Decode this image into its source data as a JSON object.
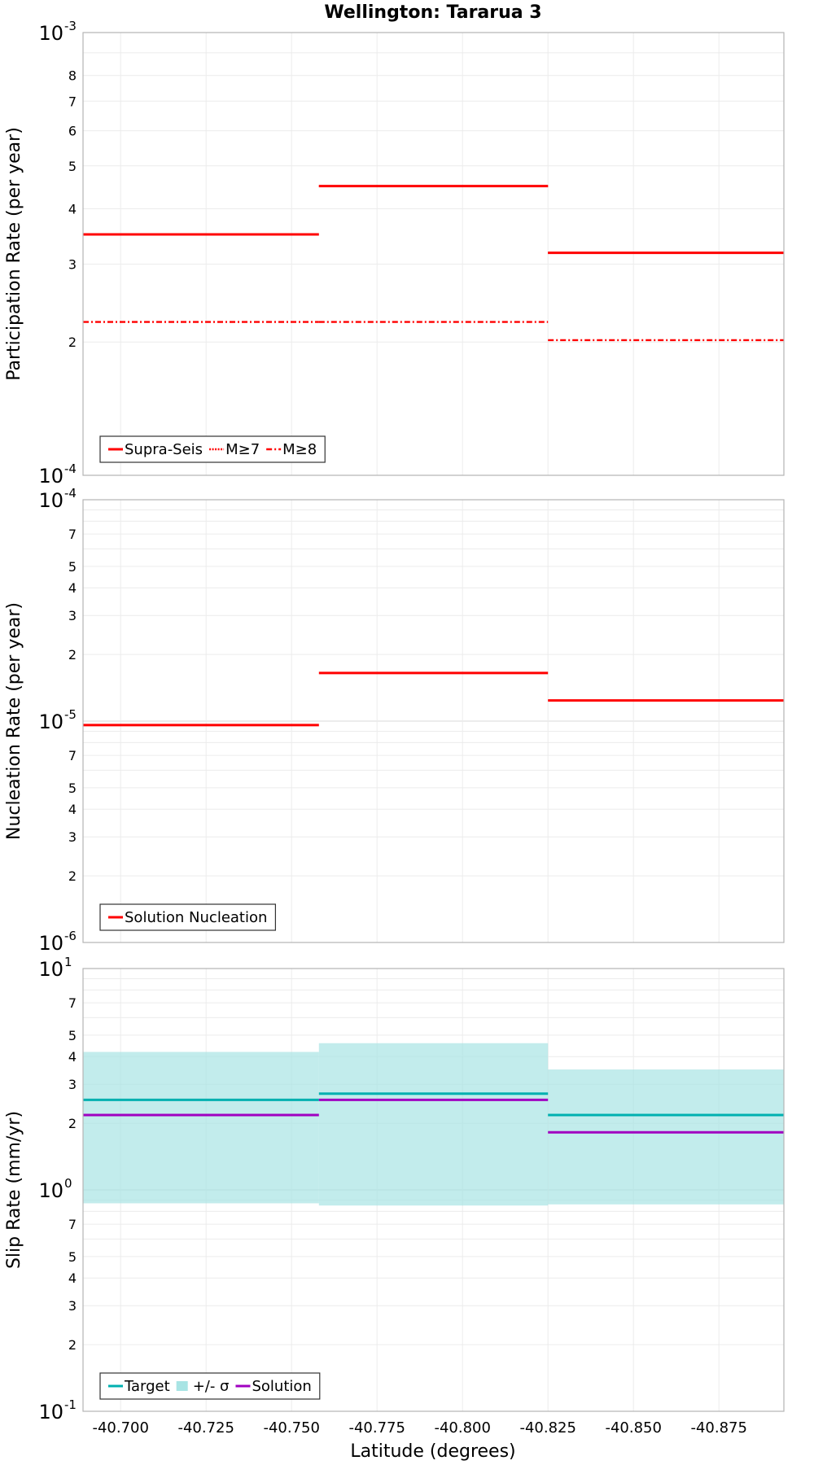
{
  "chart_data": {
    "type": "line",
    "title": "Wellington: Tararua 3",
    "xlabel": "Latitude (degrees)",
    "xlim": [
      -40.689,
      -40.894
    ],
    "x_ticks": [
      {
        "value": -40.7,
        "label": "-40.700"
      },
      {
        "value": -40.725,
        "label": "-40.725"
      },
      {
        "value": -40.75,
        "label": "-40.750"
      },
      {
        "value": -40.775,
        "label": "-40.775"
      },
      {
        "value": -40.8,
        "label": "-40.800"
      },
      {
        "value": -40.825,
        "label": "-40.825"
      },
      {
        "value": -40.85,
        "label": "-40.850"
      },
      {
        "value": -40.875,
        "label": "-40.875"
      }
    ],
    "segments": [
      {
        "start": -40.689,
        "end": -40.758
      },
      {
        "start": -40.758,
        "end": -40.825
      },
      {
        "start": -40.825,
        "end": -40.894
      }
    ],
    "panels": [
      {
        "id": "participation",
        "ylabel": "Participation Rate (per year)",
        "ylim": [
          0.0001,
          0.001
        ],
        "decade_labels": [
          {
            "base": "10",
            "exp": "-4",
            "value": 0.0001
          },
          {
            "base": "10",
            "exp": "-3",
            "value": 0.001
          }
        ],
        "minor_labels": [
          {
            "label": "2",
            "value": 0.0002
          },
          {
            "label": "3",
            "value": 0.0003
          },
          {
            "label": "4",
            "value": 0.0004
          },
          {
            "label": "5",
            "value": 0.0005
          },
          {
            "label": "6",
            "value": 0.0006
          },
          {
            "label": "7",
            "value": 0.0007
          },
          {
            "label": "8",
            "value": 0.0008
          }
        ],
        "series": [
          {
            "name": "Supra-Seis",
            "style": "solid",
            "color": "#ff0000",
            "values": [
              0.00035,
              0.00045,
              0.000318
            ]
          },
          {
            "name": "M≥7",
            "style": "dotted",
            "color": "#ff0000",
            "values": [
              0.00035,
              0.00045,
              0.000318
            ]
          },
          {
            "name": "M≥8",
            "style": "dashdot",
            "color": "#ff0000",
            "values": [
              0.000222,
              0.000222,
              0.000202
            ]
          }
        ]
      },
      {
        "id": "nucleation",
        "ylabel": "Nucleation Rate (per year)",
        "ylim": [
          1e-06,
          0.0001
        ],
        "decade_labels": [
          {
            "base": "10",
            "exp": "-6",
            "value": 1e-06
          },
          {
            "base": "10",
            "exp": "-5",
            "value": 1e-05
          },
          {
            "base": "10",
            "exp": "-4",
            "value": 0.0001
          }
        ],
        "minor_labels": [
          {
            "label": "2",
            "value": 2e-06
          },
          {
            "label": "3",
            "value": 3e-06
          },
          {
            "label": "4",
            "value": 4e-06
          },
          {
            "label": "5",
            "value": 5e-06
          },
          {
            "label": "7",
            "value": 7e-06
          },
          {
            "label": "2",
            "value": 2e-05
          },
          {
            "label": "3",
            "value": 3e-05
          },
          {
            "label": "4",
            "value": 4e-05
          },
          {
            "label": "5",
            "value": 5e-05
          },
          {
            "label": "7",
            "value": 7e-05
          }
        ],
        "series": [
          {
            "name": "Solution Nucleation",
            "style": "solid",
            "color": "#ff0000",
            "values": [
              9.6e-06,
              1.65e-05,
              1.24e-05
            ]
          }
        ]
      },
      {
        "id": "slip",
        "ylabel": "Slip Rate (mm/yr)",
        "ylim": [
          0.1,
          10
        ],
        "decade_labels": [
          {
            "base": "10",
            "exp": "-1",
            "value": 0.1
          },
          {
            "base": "10",
            "exp": "0",
            "value": 1
          },
          {
            "base": "10",
            "exp": "1",
            "value": 10
          }
        ],
        "minor_labels": [
          {
            "label": "2",
            "value": 0.2
          },
          {
            "label": "3",
            "value": 0.3
          },
          {
            "label": "4",
            "value": 0.4
          },
          {
            "label": "5",
            "value": 0.5
          },
          {
            "label": "7",
            "value": 0.7
          },
          {
            "label": "2",
            "value": 2
          },
          {
            "label": "3",
            "value": 3
          },
          {
            "label": "4",
            "value": 4
          },
          {
            "label": "5",
            "value": 5
          },
          {
            "label": "7",
            "value": 7
          }
        ],
        "band": {
          "name": "+/- σ",
          "color": "#a8e4e4",
          "lower": [
            0.87,
            0.85,
            0.86
          ],
          "upper": [
            4.2,
            4.6,
            3.5
          ]
        },
        "series": [
          {
            "name": "Target",
            "style": "solid",
            "color": "#00b0b0",
            "values": [
              2.55,
              2.72,
              2.18
            ]
          },
          {
            "name": "Solution",
            "style": "solid",
            "color": "#a000c0",
            "values": [
              2.18,
              2.55,
              1.82
            ]
          }
        ]
      }
    ],
    "legends": [
      {
        "panel": "participation",
        "entries": [
          {
            "label": "Supra-Seis",
            "kind": "solid",
            "color": "#ff0000"
          },
          {
            "label": "M≥7",
            "kind": "dotted",
            "color": "#ff0000"
          },
          {
            "label": "M≥8",
            "kind": "dashdot",
            "color": "#ff0000"
          }
        ]
      },
      {
        "panel": "nucleation",
        "entries": [
          {
            "label": "Solution Nucleation",
            "kind": "solid",
            "color": "#ff0000"
          }
        ]
      },
      {
        "panel": "slip",
        "entries": [
          {
            "label": "Target",
            "kind": "solid",
            "color": "#00b0b0"
          },
          {
            "label": "+/- σ",
            "kind": "band",
            "color": "#a8e4e4"
          },
          {
            "label": "Solution",
            "kind": "solid",
            "color": "#a000c0"
          }
        ]
      }
    ]
  }
}
